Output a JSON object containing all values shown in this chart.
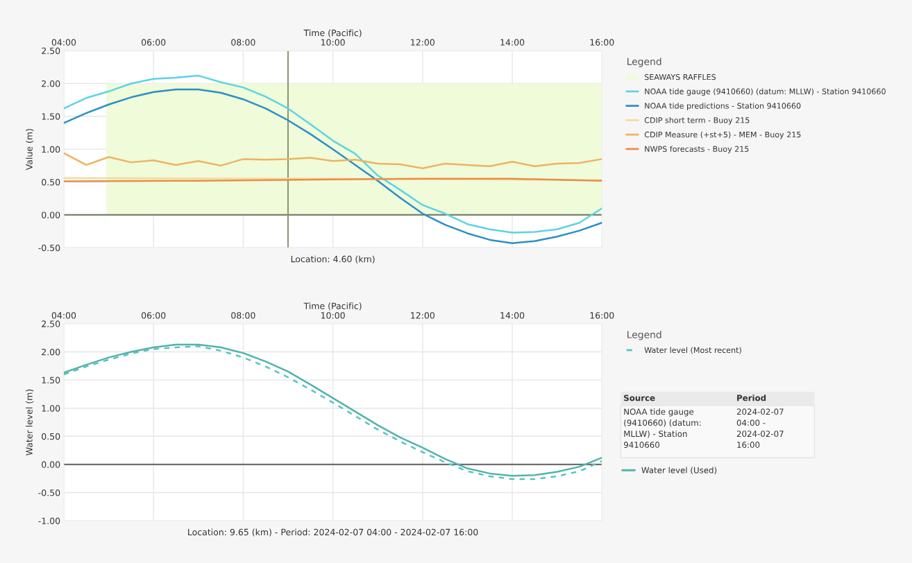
{
  "chart_data": [
    {
      "type": "line",
      "xlabel": "Time (Pacific)",
      "ylabel": "Value (m)",
      "legend_title": "Legend",
      "annotations": [
        "Location: 4.60 (km)"
      ],
      "xlim": [
        4,
        16
      ],
      "xticks": [
        {
          "value": 4,
          "label": "04:00"
        },
        {
          "value": 6,
          "label": "06:00"
        },
        {
          "value": 8,
          "label": "08:00"
        },
        {
          "value": 10,
          "label": "10:00"
        },
        {
          "value": 12,
          "label": "12:00"
        },
        {
          "value": 14,
          "label": "14:00"
        },
        {
          "value": 16,
          "label": "16:00"
        }
      ],
      "ylim": [
        -0.5,
        2.5
      ],
      "yticks": [
        {
          "value": -0.5,
          "label": "-0.50"
        },
        {
          "value": 0,
          "label": "0.00"
        },
        {
          "value": 0.5,
          "label": "0.50"
        },
        {
          "value": 1,
          "label": "1.00"
        },
        {
          "value": 1.5,
          "label": "1.50"
        },
        {
          "value": 2,
          "label": "2.00"
        },
        {
          "value": 2.5,
          "label": "2.50"
        }
      ],
      "grid": true,
      "legend": "right",
      "ref_lines": [
        {
          "axis": "y",
          "value": 0,
          "color": "#7a7f6e"
        },
        {
          "axis": "x",
          "value": 9.0,
          "color": "#8c9870"
        }
      ],
      "series": [
        {
          "name": "SEAWAYS RAFFLES",
          "type": "area",
          "color": "#effbd9",
          "x": [
            4.95,
            16
          ],
          "values": [
            2.0,
            2.0
          ]
        },
        {
          "name": "NOAA tide gauge (9410660) (datum: MLLW) - Station 9410660",
          "color": "#5dd3e6",
          "x": [
            4,
            4.5,
            5,
            5.5,
            6,
            6.5,
            7,
            7.5,
            8,
            8.5,
            9,
            9.5,
            10,
            10.5,
            11,
            11.5,
            12,
            12.5,
            13,
            13.5,
            14,
            14.5,
            15,
            15.5,
            16
          ],
          "values": [
            1.62,
            1.78,
            1.88,
            2.0,
            2.07,
            2.09,
            2.12,
            2.02,
            1.94,
            1.8,
            1.62,
            1.38,
            1.13,
            0.93,
            0.6,
            0.38,
            0.15,
            0.02,
            -0.14,
            -0.22,
            -0.27,
            -0.26,
            -0.22,
            -0.12,
            0.1
          ]
        },
        {
          "name": "NOAA tide predictions - Station 9410660",
          "color": "#2b8fc6",
          "x": [
            4,
            4.5,
            5,
            5.5,
            6,
            6.5,
            7,
            7.5,
            8,
            8.5,
            9,
            9.5,
            10,
            10.5,
            11,
            11.5,
            12,
            12.5,
            13,
            13.5,
            14,
            14.5,
            15,
            15.5,
            16
          ],
          "values": [
            1.4,
            1.55,
            1.68,
            1.79,
            1.87,
            1.91,
            1.91,
            1.86,
            1.76,
            1.62,
            1.44,
            1.23,
            1.0,
            0.76,
            0.52,
            0.26,
            0.02,
            -0.15,
            -0.28,
            -0.38,
            -0.43,
            -0.4,
            -0.33,
            -0.24,
            -0.12
          ]
        },
        {
          "name": "CDIP short term - Buoy 215",
          "color": "#f7d9a2",
          "x": [
            4,
            10,
            16
          ],
          "values": [
            0.56,
            0.55,
            0.53
          ]
        },
        {
          "name": "CDIP Measure (+st+5) - MEM - Buoy 215",
          "color": "#f0b262",
          "x": [
            4,
            4.5,
            5,
            5.5,
            6,
            6.5,
            7,
            7.5,
            8,
            8.5,
            9,
            9.5,
            10,
            10.5,
            11,
            11.5,
            12,
            12.5,
            13,
            13.5,
            14,
            14.5,
            15,
            15.5,
            16
          ],
          "values": [
            0.94,
            0.76,
            0.88,
            0.8,
            0.83,
            0.76,
            0.82,
            0.75,
            0.85,
            0.84,
            0.85,
            0.87,
            0.82,
            0.84,
            0.78,
            0.77,
            0.71,
            0.78,
            0.76,
            0.74,
            0.81,
            0.74,
            0.78,
            0.79,
            0.85
          ]
        },
        {
          "name": "NWPS forecasts - Buoy 215",
          "color": "#e98e48",
          "x": [
            4,
            7,
            10,
            12,
            14,
            16
          ],
          "values": [
            0.51,
            0.52,
            0.54,
            0.55,
            0.55,
            0.52
          ]
        }
      ]
    },
    {
      "type": "line",
      "xlabel": "Time (Pacific)",
      "ylabel": "Water level (m)",
      "legend_title": "Legend",
      "annotations": [
        "Location: 9.65 (km) - Period: 2024-02-07 04:00 - 2024-02-07 16:00",
        "Source",
        "Period",
        "NOAA tide gauge (9410660) (datum: MLLW) - Station 9410660",
        "2024-02-07 04:00 - 2024-02-07 16:00"
      ],
      "xlim": [
        4,
        16
      ],
      "xticks": [
        {
          "value": 4,
          "label": "04:00"
        },
        {
          "value": 6,
          "label": "06:00"
        },
        {
          "value": 8,
          "label": "08:00"
        },
        {
          "value": 10,
          "label": "10:00"
        },
        {
          "value": 12,
          "label": "12:00"
        },
        {
          "value": 14,
          "label": "14:00"
        },
        {
          "value": 16,
          "label": "16:00"
        }
      ],
      "ylim": [
        -1.0,
        2.5
      ],
      "yticks": [
        {
          "value": -1,
          "label": "-1.00"
        },
        {
          "value": -0.5,
          "label": "-0.50"
        },
        {
          "value": 0,
          "label": "0.00"
        },
        {
          "value": 0.5,
          "label": "0.50"
        },
        {
          "value": 1,
          "label": "1.00"
        },
        {
          "value": 1.5,
          "label": "1.50"
        },
        {
          "value": 2,
          "label": "2.00"
        },
        {
          "value": 2.5,
          "label": "2.50"
        }
      ],
      "grid": true,
      "legend": "right",
      "ref_lines": [
        {
          "axis": "y",
          "value": 0,
          "color": "#6e6e6e"
        }
      ],
      "series": [
        {
          "name": "Water level (Most recent)",
          "color": "#5cc2c2",
          "line_style": "dashed",
          "x": [
            4,
            4.5,
            5,
            5.5,
            6,
            6.5,
            7,
            7.5,
            8,
            8.5,
            9,
            9.5,
            10,
            10.5,
            11,
            11.5,
            12,
            12.5,
            13,
            13.5,
            14,
            14.5,
            15,
            15.5,
            16
          ],
          "values": [
            1.6,
            1.74,
            1.86,
            1.97,
            2.05,
            2.08,
            2.1,
            2.02,
            1.9,
            1.74,
            1.55,
            1.33,
            1.1,
            0.86,
            0.62,
            0.41,
            0.22,
            0.04,
            -0.12,
            -0.21,
            -0.26,
            -0.26,
            -0.21,
            -0.12,
            0.06
          ]
        },
        {
          "name": "Water level (Used)",
          "color": "#52b4ab",
          "line_style": "solid",
          "x": [
            4,
            4.5,
            5,
            5.5,
            6,
            6.5,
            7,
            7.5,
            8,
            8.5,
            9,
            9.5,
            10,
            10.5,
            11,
            11.5,
            12,
            12.5,
            13,
            13.5,
            14,
            14.5,
            15,
            15.5,
            16
          ],
          "values": [
            1.63,
            1.77,
            1.9,
            2.0,
            2.08,
            2.13,
            2.13,
            2.08,
            1.98,
            1.83,
            1.65,
            1.42,
            1.18,
            0.94,
            0.7,
            0.48,
            0.3,
            0.1,
            -0.07,
            -0.16,
            -0.2,
            -0.19,
            -0.13,
            -0.04,
            0.12
          ]
        }
      ]
    }
  ]
}
